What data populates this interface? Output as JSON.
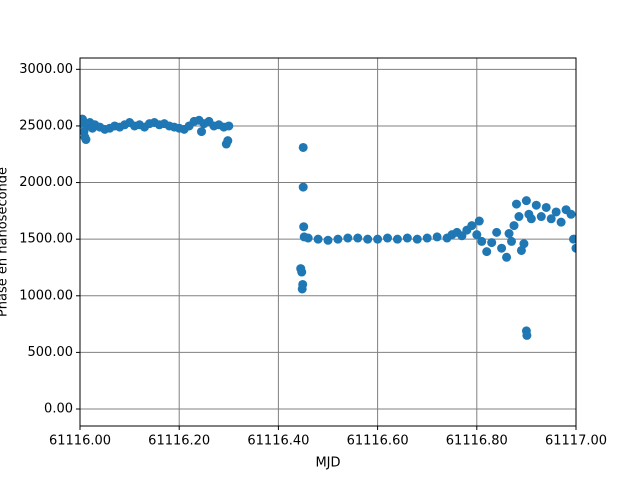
{
  "chart_data": {
    "type": "scatter",
    "x_label": "MJD",
    "y_label": "Phase en nanoseconde",
    "color": "#1f77b4",
    "grid": true,
    "xlim": [
      61116.0,
      61117.0
    ],
    "ylim": [
      -150,
      3100
    ],
    "xticks": [
      {
        "value": 61116.0,
        "label": "61116.00"
      },
      {
        "value": 61116.2,
        "label": "61116.20"
      },
      {
        "value": 61116.4,
        "label": "61116.40"
      },
      {
        "value": 61116.6,
        "label": "61116.60"
      },
      {
        "value": 61116.8,
        "label": "61116.80"
      },
      {
        "value": 61117.0,
        "label": "61117.00"
      }
    ],
    "yticks": [
      {
        "value": 0,
        "label": "0.00"
      },
      {
        "value": 500,
        "label": "500.00"
      },
      {
        "value": 1000,
        "label": "1000.00"
      },
      {
        "value": 1500,
        "label": "1500.00"
      },
      {
        "value": 2000,
        "label": "2000.00"
      },
      {
        "value": 2500,
        "label": "2500.00"
      },
      {
        "value": 3000,
        "label": "3000.00"
      }
    ],
    "x": [
      61116.0,
      61116.005,
      61116.008,
      61116.01,
      61116.012,
      61116.015,
      61116.02,
      61116.025,
      61116.03,
      61116.04,
      61116.05,
      61116.06,
      61116.07,
      61116.08,
      61116.09,
      61116.1,
      61116.11,
      61116.12,
      61116.13,
      61116.14,
      61116.15,
      61116.16,
      61116.17,
      61116.18,
      61116.19,
      61116.2,
      61116.21,
      61116.22,
      61116.23,
      61116.24,
      61116.245,
      61116.25,
      61116.26,
      61116.27,
      61116.28,
      61116.29,
      61116.295,
      61116.298,
      61116.3,
      61116.445,
      61116.447,
      61116.448,
      61116.449,
      61116.45,
      61116.45,
      61116.451,
      61116.452,
      61116.46,
      61116.48,
      61116.5,
      61116.52,
      61116.54,
      61116.56,
      61116.58,
      61116.6,
      61116.62,
      61116.64,
      61116.66,
      61116.68,
      61116.7,
      61116.72,
      61116.74,
      61116.75,
      61116.76,
      61116.77,
      61116.78,
      61116.79,
      61116.8,
      61116.805,
      61116.81,
      61116.82,
      61116.83,
      61116.84,
      61116.85,
      61116.86,
      61116.865,
      61116.87,
      61116.875,
      61116.88,
      61116.885,
      61116.89,
      61116.895,
      61116.9,
      61116.9,
      61116.901,
      61116.905,
      61116.91,
      61116.92,
      61116.93,
      61116.94,
      61116.95,
      61116.96,
      61116.97,
      61116.98,
      61116.99,
      61116.995,
      61117.0
    ],
    "y": [
      2520,
      2560,
      2450,
      2400,
      2380,
      2500,
      2530,
      2480,
      2510,
      2490,
      2470,
      2480,
      2500,
      2490,
      2510,
      2530,
      2500,
      2510,
      2490,
      2520,
      2530,
      2510,
      2520,
      2500,
      2490,
      2480,
      2470,
      2500,
      2540,
      2550,
      2450,
      2520,
      2540,
      2500,
      2510,
      2490,
      2340,
      2370,
      2500,
      1240,
      1210,
      1060,
      1100,
      1960,
      2310,
      1610,
      1520,
      1510,
      1500,
      1490,
      1500,
      1510,
      1510,
      1500,
      1500,
      1510,
      1500,
      1510,
      1500,
      1510,
      1520,
      1510,
      1540,
      1560,
      1530,
      1580,
      1620,
      1540,
      1660,
      1480,
      1390,
      1470,
      1560,
      1420,
      1340,
      1550,
      1480,
      1620,
      1810,
      1700,
      1400,
      1460,
      1840,
      690,
      650,
      1720,
      1680,
      1800,
      1700,
      1780,
      1680,
      1740,
      1650,
      1760,
      1720,
      1500,
      1420
    ]
  }
}
